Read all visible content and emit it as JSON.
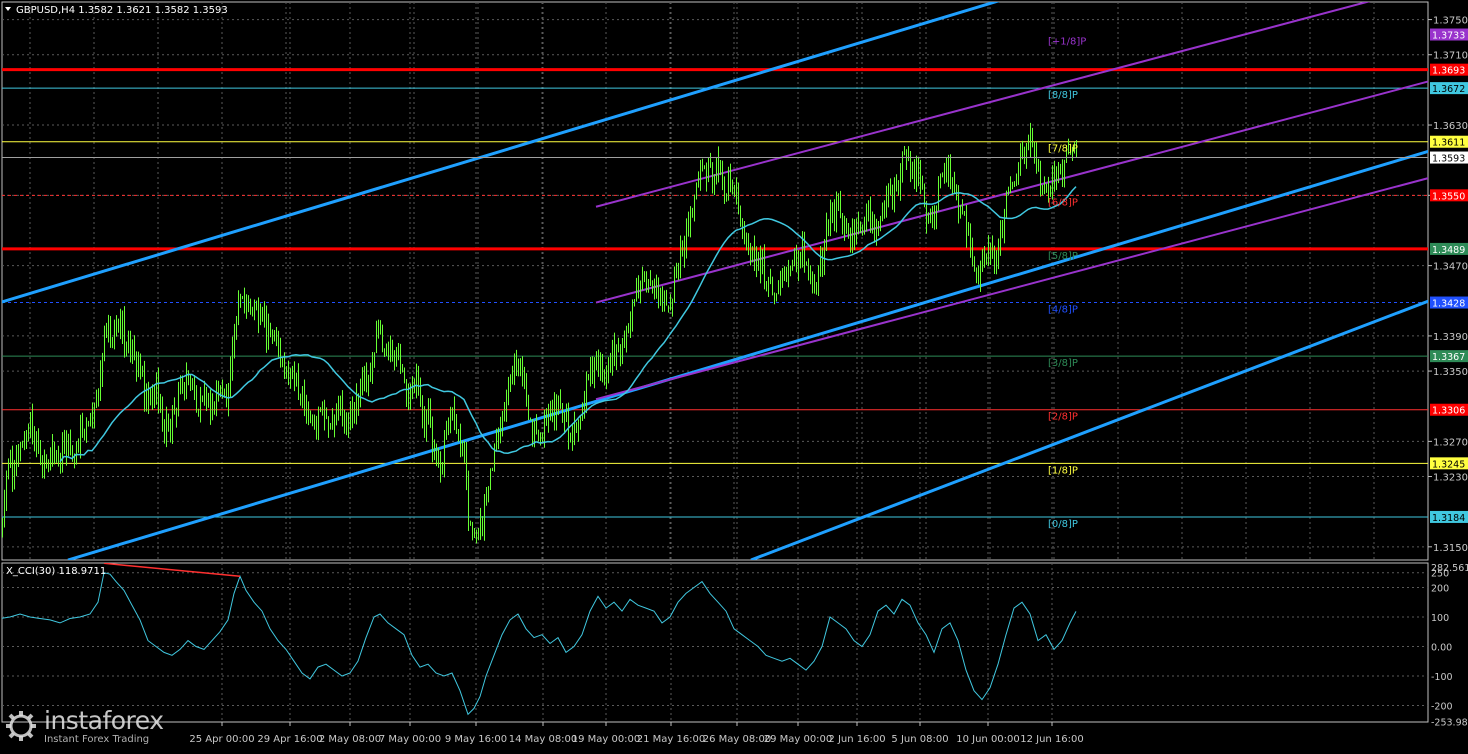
{
  "chart_data": {
    "type": "candlestick",
    "title": "GBPUSD,H4",
    "ohlc_header": "1.3582 1.3621 1.3582 1.3593",
    "last_price": 1.3593,
    "ylim": [
      1.3135,
      1.377
    ],
    "y_ticks": [
      1.375,
      1.371,
      1.363,
      1.355,
      1.347,
      1.339,
      1.335,
      1.327,
      1.323,
      1.315
    ],
    "x_tick_labels": [
      "25 Apr 00:00",
      "29 Apr 16:00",
      "2 May 08:00",
      "7 May 00:00",
      "9 May 16:00",
      "14 May 08:00",
      "19 May 00:00",
      "21 May 16:00",
      "26 May 08:00",
      "29 May 00:00",
      "2 Jun 16:00",
      "5 Jun 08:00",
      "10 Jun 00:00",
      "12 Jun 16:00"
    ],
    "murrey_levels": [
      {
        "label": "[+1/8]P",
        "value": 1.3733,
        "color": "#9933cc",
        "line": false
      },
      {
        "label": "",
        "value": 1.3693,
        "color": "#ff0000",
        "line": true,
        "thick": true
      },
      {
        "label": "[8/8]P",
        "value": 1.3672,
        "color": "#40c8e0",
        "line": true
      },
      {
        "label": "[7/8]P",
        "value": 1.3611,
        "color": "#ffff40",
        "line": true
      },
      {
        "label": "[6/8]P",
        "value": 1.355,
        "color": "#ff3030",
        "line": true,
        "dashed": true
      },
      {
        "label": "[5/8]P",
        "value": 1.3489,
        "color": "#2e8b57",
        "line": true,
        "thick": true,
        "linecolor": "#ff0000"
      },
      {
        "label": "[4/8]P",
        "value": 1.3428,
        "color": "#2050ff",
        "line": true,
        "dashed": true
      },
      {
        "label": "[3/8]P",
        "value": 1.3367,
        "color": "#2e8b57",
        "line": true
      },
      {
        "label": "[2/8]P",
        "value": 1.3306,
        "color": "#ff3030",
        "line": true
      },
      {
        "label": "[1/8]P",
        "value": 1.3245,
        "color": "#ffff40",
        "line": true
      },
      {
        "label": "[0/8]P",
        "value": 1.3184,
        "color": "#40c8e0",
        "line": true
      }
    ],
    "price_badges": [
      {
        "text": "1.3733",
        "value": 1.3733,
        "bg": "#9933cc",
        "fg": "#ffffff"
      },
      {
        "text": "1.3693",
        "value": 1.3693,
        "bg": "#ff0000",
        "fg": "#ffffff"
      },
      {
        "text": "1.3672",
        "value": 1.3672,
        "bg": "#40c8e0",
        "fg": "#000000"
      },
      {
        "text": "1.3611",
        "value": 1.3611,
        "bg": "#ffff40",
        "fg": "#000000"
      },
      {
        "text": "1.3593",
        "value": 1.3593,
        "bg": "#ffffff",
        "fg": "#000000"
      },
      {
        "text": "1.3550",
        "value": 1.355,
        "bg": "#ff0000",
        "fg": "#ffffff"
      },
      {
        "text": "1.3489",
        "value": 1.3489,
        "bg": "#2e8b57",
        "fg": "#ffffff"
      },
      {
        "text": "1.3428",
        "value": 1.3428,
        "bg": "#2050ff",
        "fg": "#ffffff"
      },
      {
        "text": "1.3367",
        "value": 1.3367,
        "bg": "#2e8b57",
        "fg": "#ffffff"
      },
      {
        "text": "1.3306",
        "value": 1.3306,
        "bg": "#ff0000",
        "fg": "#ffffff"
      },
      {
        "text": "1.3245",
        "value": 1.3245,
        "bg": "#ffff40",
        "fg": "#000000"
      },
      {
        "text": "1.3184",
        "value": 1.3184,
        "bg": "#40c8e0",
        "fg": "#000000"
      }
    ],
    "price_path": [
      [
        0,
        1.3185
      ],
      [
        4,
        1.3205
      ],
      [
        8,
        1.3245
      ],
      [
        14,
        1.323
      ],
      [
        22,
        1.3265
      ],
      [
        28,
        1.329
      ],
      [
        35,
        1.327
      ],
      [
        42,
        1.324
      ],
      [
        50,
        1.3255
      ],
      [
        58,
        1.325
      ],
      [
        66,
        1.3275
      ],
      [
        74,
        1.326
      ],
      [
        82,
        1.329
      ],
      [
        92,
        1.329
      ],
      [
        98,
        1.333
      ],
      [
        104,
        1.34
      ],
      [
        110,
        1.339
      ],
      [
        118,
        1.341
      ],
      [
        126,
        1.338
      ],
      [
        134,
        1.337
      ],
      [
        140,
        1.335
      ],
      [
        148,
        1.331
      ],
      [
        156,
        1.333
      ],
      [
        164,
        1.3285
      ],
      [
        172,
        1.33
      ],
      [
        180,
        1.332
      ],
      [
        188,
        1.3345
      ],
      [
        196,
        1.331
      ],
      [
        204,
        1.332
      ],
      [
        212,
        1.33
      ],
      [
        220,
        1.333
      ],
      [
        228,
        1.332
      ],
      [
        236,
        1.342
      ],
      [
        242,
        1.3435
      ],
      [
        250,
        1.341
      ],
      [
        258,
        1.3415
      ],
      [
        266,
        1.34
      ],
      [
        274,
        1.339
      ],
      [
        282,
        1.336
      ],
      [
        290,
        1.334
      ],
      [
        298,
        1.333
      ],
      [
        306,
        1.33
      ],
      [
        314,
        1.329
      ],
      [
        322,
        1.33
      ],
      [
        330,
        1.328
      ],
      [
        338,
        1.331
      ],
      [
        346,
        1.329
      ],
      [
        354,
        1.33
      ],
      [
        362,
        1.334
      ],
      [
        370,
        1.333
      ],
      [
        376,
        1.34
      ],
      [
        384,
        1.338
      ],
      [
        392,
        1.337
      ],
      [
        400,
        1.336
      ],
      [
        408,
        1.332
      ],
      [
        416,
        1.334
      ],
      [
        422,
        1.33
      ],
      [
        428,
        1.329
      ],
      [
        434,
        1.326
      ],
      [
        440,
        1.324
      ],
      [
        446,
        1.328
      ],
      [
        452,
        1.33
      ],
      [
        458,
        1.328
      ],
      [
        464,
        1.325
      ],
      [
        468,
        1.318
      ],
      [
        472,
        1.316
      ],
      [
        478,
        1.317
      ],
      [
        484,
        1.319
      ],
      [
        490,
        1.323
      ],
      [
        496,
        1.326
      ],
      [
        502,
        1.33
      ],
      [
        508,
        1.332
      ],
      [
        514,
        1.335
      ],
      [
        520,
        1.336
      ],
      [
        526,
        1.332
      ],
      [
        532,
        1.329
      ],
      [
        540,
        1.328
      ],
      [
        548,
        1.33
      ],
      [
        556,
        1.331
      ],
      [
        564,
        1.329
      ],
      [
        572,
        1.328
      ],
      [
        580,
        1.33
      ],
      [
        588,
        1.334
      ],
      [
        596,
        1.336
      ],
      [
        604,
        1.335
      ],
      [
        612,
        1.337
      ],
      [
        620,
        1.338
      ],
      [
        628,
        1.339
      ],
      [
        636,
        1.344
      ],
      [
        644,
        1.346
      ],
      [
        652,
        1.344
      ],
      [
        660,
        1.343
      ],
      [
        668,
        1.342
      ],
      [
        676,
        1.346
      ],
      [
        682,
        1.349
      ],
      [
        688,
        1.352
      ],
      [
        694,
        1.354
      ],
      [
        700,
        1.357
      ],
      [
        706,
        1.358
      ],
      [
        712,
        1.357
      ],
      [
        718,
        1.358
      ],
      [
        724,
        1.356
      ],
      [
        730,
        1.357
      ],
      [
        736,
        1.354
      ],
      [
        742,
        1.35
      ],
      [
        748,
        1.349
      ],
      [
        754,
        1.348
      ],
      [
        760,
        1.347
      ],
      [
        766,
        1.346
      ],
      [
        772,
        1.344
      ],
      [
        778,
        1.345
      ],
      [
        784,
        1.347
      ],
      [
        790,
        1.348
      ],
      [
        796,
        1.347
      ],
      [
        802,
        1.349
      ],
      [
        808,
        1.346
      ],
      [
        814,
        1.345
      ],
      [
        820,
        1.347
      ],
      [
        826,
        1.351
      ],
      [
        832,
        1.354
      ],
      [
        838,
        1.353
      ],
      [
        844,
        1.351
      ],
      [
        850,
        1.35
      ],
      [
        856,
        1.352
      ],
      [
        862,
        1.351
      ],
      [
        868,
        1.354
      ],
      [
        874,
        1.35
      ],
      [
        880,
        1.353
      ],
      [
        886,
        1.356
      ],
      [
        892,
        1.355
      ],
      [
        898,
        1.357
      ],
      [
        904,
        1.36
      ],
      [
        910,
        1.358
      ],
      [
        916,
        1.357
      ],
      [
        922,
        1.355
      ],
      [
        928,
        1.352
      ],
      [
        934,
        1.353
      ],
      [
        940,
        1.357
      ],
      [
        946,
        1.358
      ],
      [
        952,
        1.356
      ],
      [
        958,
        1.354
      ],
      [
        964,
        1.352
      ],
      [
        970,
        1.349
      ],
      [
        976,
        1.346
      ],
      [
        982,
        1.347
      ],
      [
        988,
        1.349
      ],
      [
        994,
        1.347
      ],
      [
        1000,
        1.35
      ],
      [
        1006,
        1.356
      ],
      [
        1012,
        1.357
      ],
      [
        1018,
        1.358
      ],
      [
        1024,
        1.36
      ],
      [
        1030,
        1.361
      ],
      [
        1036,
        1.358
      ],
      [
        1042,
        1.355
      ],
      [
        1048,
        1.356
      ],
      [
        1054,
        1.358
      ],
      [
        1060,
        1.357
      ],
      [
        1066,
        1.359
      ],
      [
        1072,
        1.36
      ],
      [
        1076,
        1.3593
      ]
    ],
    "channels": {
      "outer_channel": {
        "color": "#1fa0ff",
        "lines": [
          [
            [
              0,
              1.3428
            ],
            [
              1466,
              1.3932
            ]
          ],
          [
            [
              68,
              1.3135
            ],
            [
              1466,
              1.3613
            ]
          ],
          [
            [
              751,
              1.3135
            ],
            [
              1466,
              1.3446
            ]
          ]
        ]
      },
      "inner_channel": {
        "color": "#9933cc",
        "lines": [
          [
            [
              596,
              1.3537
            ],
            [
              1466,
              1.38
            ]
          ],
          [
            [
              596,
              1.3428
            ],
            [
              1466,
              1.3691
            ]
          ],
          [
            [
              596,
              1.3318
            ],
            [
              1466,
              1.3581
            ]
          ]
        ]
      }
    },
    "indicator": {
      "name": "X_CCI(30) 118.9711",
      "ylim": [
        -256,
        283
      ],
      "ytick_labels": [
        "282.5616",
        "250",
        "200",
        "100",
        "0.00",
        "-100",
        "-200",
        "-253.980"
      ],
      "ytick_values": [
        282.5616,
        250,
        200,
        100,
        0,
        -100,
        -200,
        -253.98
      ],
      "line_color": "#40c8e0",
      "divergence_color": "#ff3030",
      "divergence": [
        [
          104,
          282
        ],
        [
          240,
          238
        ]
      ],
      "cci_path": [
        [
          0,
          95
        ],
        [
          10,
          100
        ],
        [
          20,
          110
        ],
        [
          30,
          100
        ],
        [
          40,
          95
        ],
        [
          50,
          90
        ],
        [
          60,
          80
        ],
        [
          70,
          95
        ],
        [
          80,
          100
        ],
        [
          90,
          110
        ],
        [
          98,
          150
        ],
        [
          104,
          250
        ],
        [
          110,
          245
        ],
        [
          116,
          220
        ],
        [
          124,
          190
        ],
        [
          132,
          140
        ],
        [
          140,
          90
        ],
        [
          148,
          20
        ],
        [
          156,
          0
        ],
        [
          164,
          -20
        ],
        [
          172,
          -30
        ],
        [
          180,
          -10
        ],
        [
          188,
          20
        ],
        [
          196,
          0
        ],
        [
          204,
          -10
        ],
        [
          212,
          20
        ],
        [
          220,
          50
        ],
        [
          228,
          90
        ],
        [
          234,
          180
        ],
        [
          240,
          238
        ],
        [
          246,
          190
        ],
        [
          254,
          150
        ],
        [
          262,
          120
        ],
        [
          270,
          60
        ],
        [
          278,
          20
        ],
        [
          286,
          -10
        ],
        [
          294,
          -50
        ],
        [
          302,
          -90
        ],
        [
          310,
          -110
        ],
        [
          318,
          -70
        ],
        [
          326,
          -60
        ],
        [
          334,
          -80
        ],
        [
          342,
          -100
        ],
        [
          350,
          -90
        ],
        [
          358,
          -50
        ],
        [
          366,
          30
        ],
        [
          374,
          100
        ],
        [
          380,
          110
        ],
        [
          388,
          80
        ],
        [
          396,
          60
        ],
        [
          404,
          40
        ],
        [
          412,
          -30
        ],
        [
          420,
          -70
        ],
        [
          428,
          -60
        ],
        [
          436,
          -90
        ],
        [
          444,
          -100
        ],
        [
          452,
          -90
        ],
        [
          460,
          -150
        ],
        [
          468,
          -230
        ],
        [
          474,
          -210
        ],
        [
          480,
          -170
        ],
        [
          486,
          -100
        ],
        [
          494,
          -30
        ],
        [
          502,
          40
        ],
        [
          510,
          90
        ],
        [
          518,
          110
        ],
        [
          526,
          60
        ],
        [
          534,
          30
        ],
        [
          542,
          40
        ],
        [
          550,
          10
        ],
        [
          558,
          30
        ],
        [
          566,
          -20
        ],
        [
          574,
          0
        ],
        [
          582,
          40
        ],
        [
          590,
          120
        ],
        [
          598,
          170
        ],
        [
          606,
          130
        ],
        [
          614,
          150
        ],
        [
          622,
          120
        ],
        [
          630,
          160
        ],
        [
          638,
          140
        ],
        [
          646,
          130
        ],
        [
          654,
          120
        ],
        [
          662,
          80
        ],
        [
          670,
          100
        ],
        [
          678,
          150
        ],
        [
          686,
          180
        ],
        [
          694,
          200
        ],
        [
          702,
          220
        ],
        [
          710,
          180
        ],
        [
          718,
          150
        ],
        [
          726,
          120
        ],
        [
          734,
          60
        ],
        [
          742,
          40
        ],
        [
          750,
          20
        ],
        [
          758,
          0
        ],
        [
          766,
          -30
        ],
        [
          774,
          -40
        ],
        [
          782,
          -50
        ],
        [
          790,
          -40
        ],
        [
          798,
          -60
        ],
        [
          806,
          -80
        ],
        [
          814,
          -50
        ],
        [
          822,
          0
        ],
        [
          830,
          100
        ],
        [
          838,
          80
        ],
        [
          846,
          60
        ],
        [
          854,
          20
        ],
        [
          862,
          0
        ],
        [
          870,
          40
        ],
        [
          878,
          120
        ],
        [
          886,
          140
        ],
        [
          894,
          110
        ],
        [
          902,
          160
        ],
        [
          910,
          140
        ],
        [
          918,
          80
        ],
        [
          926,
          40
        ],
        [
          934,
          -20
        ],
        [
          942,
          60
        ],
        [
          950,
          80
        ],
        [
          958,
          20
        ],
        [
          966,
          -80
        ],
        [
          974,
          -150
        ],
        [
          982,
          -180
        ],
        [
          990,
          -140
        ],
        [
          998,
          -60
        ],
        [
          1006,
          40
        ],
        [
          1014,
          130
        ],
        [
          1022,
          150
        ],
        [
          1030,
          110
        ],
        [
          1038,
          20
        ],
        [
          1046,
          40
        ],
        [
          1054,
          -10
        ],
        [
          1062,
          20
        ],
        [
          1070,
          80
        ],
        [
          1076,
          119
        ]
      ]
    }
  },
  "watermark": {
    "brand": "instaforex",
    "tagline": "Instant Forex Trading"
  }
}
